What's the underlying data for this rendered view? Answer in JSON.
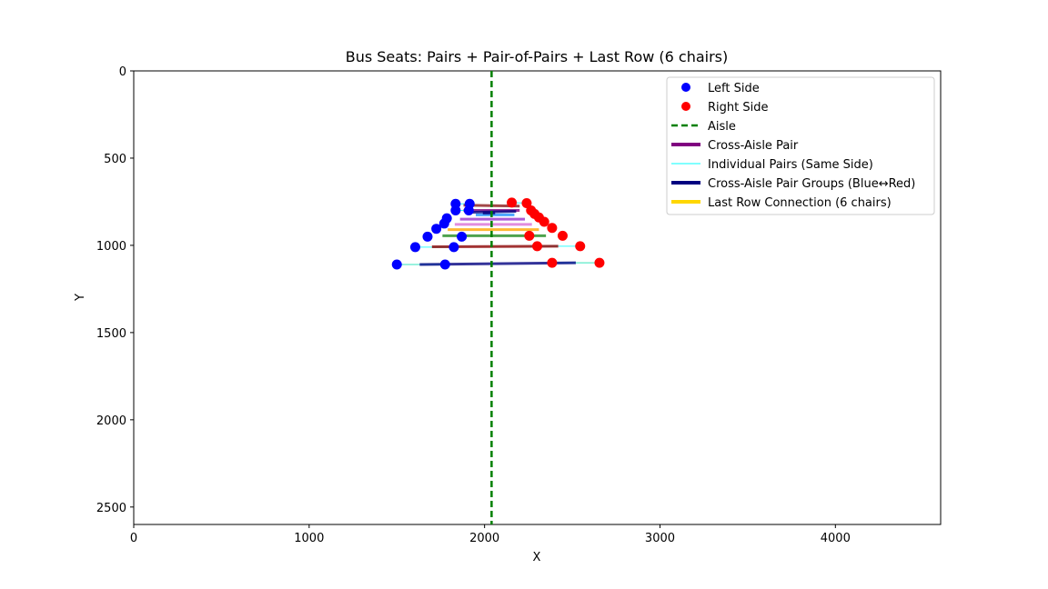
{
  "chart_data": {
    "type": "scatter",
    "title": "Bus Seats: Pairs + Pair-of-Pairs + Last Row (6 chairs)",
    "xlabel": "X",
    "ylabel": "Y",
    "xlim": [
      0,
      4600
    ],
    "ylim": [
      2600,
      0
    ],
    "y_inverted": true,
    "xticks": [
      0,
      1000,
      2000,
      3000,
      4000
    ],
    "yticks": [
      0,
      500,
      1000,
      1500,
      2000,
      2500
    ],
    "grid": false,
    "legend_position": "top-right",
    "aisle_x": 2040,
    "left_side": {
      "color": "#0000ff",
      "points": [
        [
          1835,
          762
        ],
        [
          1915,
          762
        ],
        [
          1835,
          800
        ],
        [
          1910,
          800
        ],
        [
          1785,
          845
        ],
        [
          1770,
          875
        ],
        [
          1725,
          905
        ],
        [
          1675,
          950
        ],
        [
          1605,
          1010
        ],
        [
          1825,
          1010
        ],
        [
          1870,
          950
        ],
        [
          1500,
          1110
        ],
        [
          1775,
          1110
        ]
      ]
    },
    "right_side": {
      "color": "#ff0000",
      "points": [
        [
          2155,
          755
        ],
        [
          2240,
          758
        ],
        [
          2265,
          800
        ],
        [
          2285,
          820
        ],
        [
          2310,
          840
        ],
        [
          2340,
          865
        ],
        [
          2385,
          900
        ],
        [
          2445,
          945
        ],
        [
          2255,
          945
        ],
        [
          2300,
          1005
        ],
        [
          2545,
          1005
        ],
        [
          2385,
          1100
        ],
        [
          2655,
          1100
        ]
      ]
    },
    "cross_aisle_pairs": [
      {
        "from": [
          1880,
          800
        ],
        "to": [
          2200,
          800
        ],
        "color": "#800080"
      },
      {
        "from": [
          1860,
          850
        ],
        "to": [
          2230,
          850
        ],
        "color": "#9932cc"
      },
      {
        "from": [
          1830,
          880
        ],
        "to": [
          2270,
          880
        ],
        "color": "#da70d6"
      },
      {
        "from": [
          1790,
          910
        ],
        "to": [
          2310,
          910
        ],
        "color": "#ffa500"
      },
      {
        "from": [
          1760,
          945
        ],
        "to": [
          2350,
          945
        ],
        "color": "#228b22"
      },
      {
        "from": [
          1700,
          1008
        ],
        "to": [
          2420,
          1005
        ],
        "color": "#8b0000"
      },
      {
        "from": [
          1630,
          1110
        ],
        "to": [
          2520,
          1100
        ],
        "color": "#000080"
      }
    ],
    "individual_pairs": [
      {
        "from": [
          1835,
          762
        ],
        "to": [
          1915,
          762
        ]
      },
      {
        "from": [
          1835,
          800
        ],
        "to": [
          1910,
          800
        ]
      },
      {
        "from": [
          1605,
          1010
        ],
        "to": [
          1825,
          1010
        ]
      },
      {
        "from": [
          1500,
          1110
        ],
        "to": [
          1775,
          1110
        ]
      },
      {
        "from": [
          2155,
          755
        ],
        "to": [
          2240,
          758
        ]
      },
      {
        "from": [
          2300,
          1005
        ],
        "to": [
          2545,
          1005
        ]
      },
      {
        "from": [
          2385,
          1100
        ],
        "to": [
          2655,
          1100
        ]
      }
    ],
    "pair_groups": [
      {
        "from": [
          1880,
          770
        ],
        "to": [
          2200,
          775
        ],
        "color": "#8b1a1a"
      },
      {
        "from": [
          1930,
          810
        ],
        "to": [
          2180,
          805
        ],
        "color": "#000080"
      },
      {
        "from": [
          1950,
          825
        ],
        "to": [
          2170,
          825
        ],
        "color": "#1e90ff"
      },
      {
        "from": [
          1990,
          815
        ],
        "to": [
          2060,
          815
        ],
        "color": "#000080"
      }
    ],
    "last_row_connections": [
      {
        "from": [
          1500,
          1110
        ],
        "to": [
          1630,
          1110
        ]
      },
      {
        "from": [
          2520,
          1100
        ],
        "to": [
          2655,
          1100
        ]
      }
    ],
    "legend": [
      {
        "label": "Left Side",
        "kind": "marker",
        "color": "#0000ff"
      },
      {
        "label": "Right Side",
        "kind": "marker",
        "color": "#ff0000"
      },
      {
        "label": "Aisle",
        "kind": "dashed",
        "color": "#008000"
      },
      {
        "label": "Cross-Aisle Pair",
        "kind": "thick",
        "color": "#800080"
      },
      {
        "label": "Individual Pairs (Same Side)",
        "kind": "thin",
        "color": "#00ffff"
      },
      {
        "label": "Cross-Aisle Pair Groups (Blue↔Red)",
        "kind": "thick",
        "color": "#000080"
      },
      {
        "label": "Last Row Connection (6 chairs)",
        "kind": "thick",
        "color": "#ffd700"
      }
    ]
  }
}
